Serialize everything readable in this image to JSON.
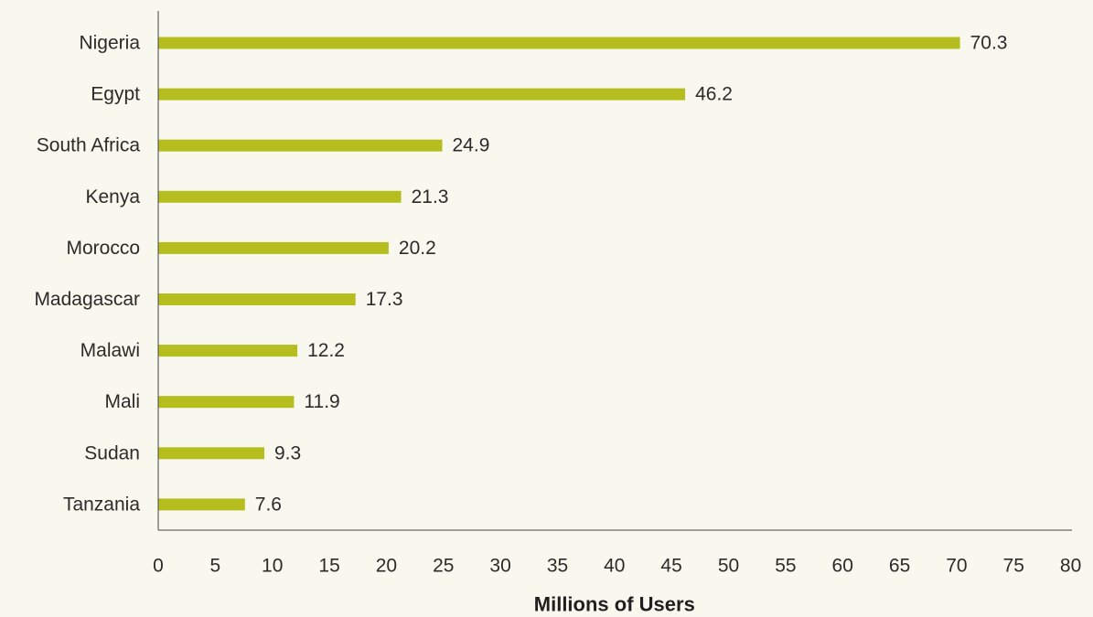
{
  "chart_data": {
    "type": "bar",
    "orientation": "horizontal",
    "categories": [
      "Nigeria",
      "Egypt",
      "South Africa",
      "Kenya",
      "Morocco",
      "Madagascar",
      "Malawi",
      "Mali",
      "Sudan",
      "Tanzania"
    ],
    "values": [
      70.3,
      46.2,
      24.9,
      21.3,
      20.2,
      17.3,
      12.2,
      11.9,
      9.3,
      7.6
    ],
    "value_labels": [
      "70.3",
      "46.2",
      "24.9",
      "21.3",
      "20.2",
      "17.3",
      "12.2",
      "11.9",
      "9.3",
      "7.6"
    ],
    "xlabel": "Millions of Users",
    "ylabel": "",
    "title": "",
    "xlim": [
      0,
      80
    ],
    "x_ticks": [
      0,
      5,
      10,
      15,
      20,
      25,
      30,
      35,
      40,
      45,
      50,
      55,
      60,
      65,
      70,
      75,
      80
    ],
    "grid": false,
    "legend": "none",
    "colors": {
      "bar": "#b5bd1f",
      "axis": "#444444",
      "background": "#f8f8ef"
    }
  }
}
